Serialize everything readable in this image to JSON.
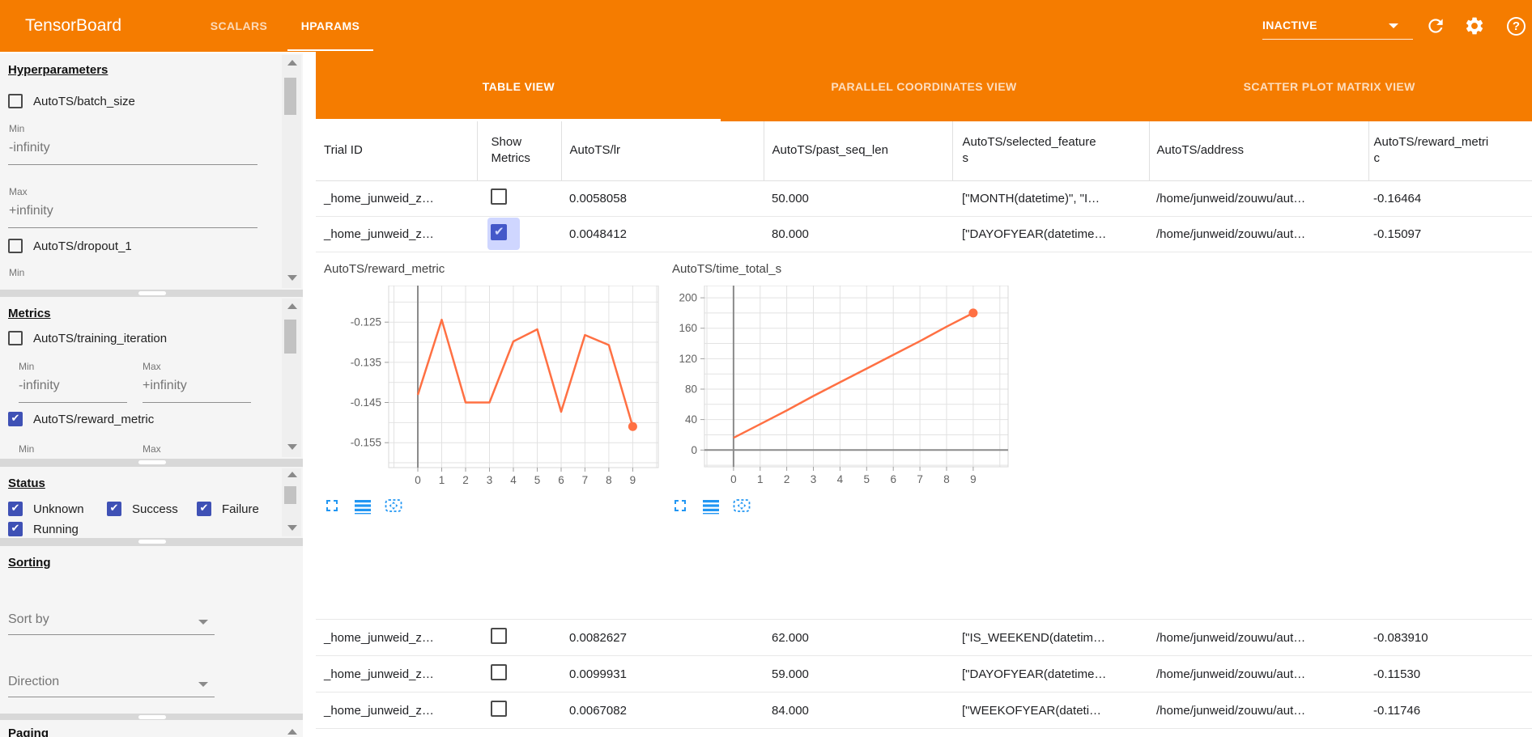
{
  "colors": {
    "toolbar_orange": "#f57c00",
    "accent_line": "#ff7043",
    "checkbox_blue": "#3f51b5",
    "chart_icon_blue": "#2196f3"
  },
  "toolbar": {
    "title": "TensorBoard",
    "tabs": [
      {
        "label": "SCALARS"
      },
      {
        "label": "HPARAMS"
      }
    ],
    "active_tab": "HPARAMS",
    "run_selector_value": "INACTIVE"
  },
  "sidebar": {
    "hyperparameters": {
      "title": "Hyperparameters",
      "items": [
        {
          "label": "AutoTS/batch_size",
          "checked": false,
          "min": {
            "label": "Min",
            "value": "-infinity"
          },
          "max": {
            "label": "Max",
            "value": "+infinity"
          }
        },
        {
          "label": "AutoTS/dropout_1",
          "checked": false,
          "min": {
            "label": "Min"
          }
        }
      ]
    },
    "metrics": {
      "title": "Metrics",
      "items": [
        {
          "label": "AutoTS/training_iteration",
          "checked": false,
          "min": {
            "label": "Min",
            "value": "-infinity"
          },
          "max": {
            "label": "Max",
            "value": "+infinity"
          }
        },
        {
          "label": "AutoTS/reward_metric",
          "checked": true,
          "min": {
            "label": "Min"
          },
          "max": {
            "label": "Max"
          }
        }
      ]
    },
    "status": {
      "title": "Status",
      "options": [
        {
          "label": "Unknown",
          "checked": true
        },
        {
          "label": "Success",
          "checked": true
        },
        {
          "label": "Failure",
          "checked": true
        },
        {
          "label": "Running",
          "checked": true
        }
      ]
    },
    "sorting": {
      "title": "Sorting",
      "sort_by_placeholder": "Sort by",
      "direction_placeholder": "Direction"
    },
    "paging": {
      "title": "Paging"
    }
  },
  "main": {
    "view_tabs": [
      {
        "label": "TABLE VIEW",
        "active": true
      },
      {
        "label": "PARALLEL COORDINATES VIEW",
        "active": false
      },
      {
        "label": "SCATTER PLOT MATRIX VIEW",
        "active": false
      }
    ],
    "table": {
      "columns": [
        "Trial ID",
        "Show Metrics",
        "AutoTS/lr",
        "AutoTS/past_seq_len",
        "AutoTS/selected_features",
        "AutoTS/address",
        "AutoTS/reward_metric"
      ],
      "rows": [
        {
          "trial_id": "_home_junweid_z…",
          "show_metrics": false,
          "lr": "0.0058058",
          "past_seq_len": "50.000",
          "selected_features": "[\"MONTH(datetime)\", \"I…",
          "address": "/home/junweid/zouwu/aut…",
          "reward_metric": "-0.16464"
        },
        {
          "trial_id": "_home_junweid_z…",
          "show_metrics": true,
          "lr": "0.0048412",
          "past_seq_len": "80.000",
          "selected_features": "[\"DAYOFYEAR(datetime…",
          "address": "/home/junweid/zouwu/aut…",
          "reward_metric": "-0.15097"
        },
        {
          "trial_id": "_home_junweid_z…",
          "show_metrics": false,
          "lr": "0.0082627",
          "past_seq_len": "62.000",
          "selected_features": "[\"IS_WEEKEND(datetim…",
          "address": "/home/junweid/zouwu/aut…",
          "reward_metric": "-0.083910"
        },
        {
          "trial_id": "_home_junweid_z…",
          "show_metrics": false,
          "lr": "0.0099931",
          "past_seq_len": "59.000",
          "selected_features": "[\"DAYOFYEAR(datetime…",
          "address": "/home/junweid/zouwu/aut…",
          "reward_metric": "-0.11530"
        },
        {
          "trial_id": "_home_junweid_z…",
          "show_metrics": false,
          "lr": "0.0067082",
          "past_seq_len": "84.000",
          "selected_features": "[\"WEEKOFYEAR(dateti…",
          "address": "/home/junweid/zouwu/aut…",
          "reward_metric": "-0.11746"
        }
      ]
    }
  },
  "chart_data": [
    {
      "type": "line",
      "title": "AutoTS/reward_metric",
      "x": [
        0,
        1,
        2,
        3,
        4,
        5,
        6,
        7,
        8,
        9
      ],
      "y": [
        -0.1431,
        -0.1244,
        -0.145,
        -0.145,
        -0.1298,
        -0.1268,
        -0.1473,
        -0.1282,
        -0.1307,
        -0.15097
      ],
      "xlim": [
        -1.22,
        10.07
      ],
      "ylim": [
        -0.1612,
        -0.1159
      ],
      "xticks": [
        0,
        1,
        2,
        3,
        4,
        5,
        6,
        7,
        8,
        9
      ],
      "yticks": [
        -0.125,
        -0.135,
        -0.145,
        -0.155
      ],
      "ytick_labels": [
        "-0.125",
        "-0.135",
        "-0.145",
        "-0.155"
      ],
      "grid": true,
      "grid_x_step": 1,
      "grid_y_step": 0.005,
      "line_color": "#ff7043",
      "end_marker": true
    },
    {
      "type": "line",
      "title": "AutoTS/time_total_s",
      "x": [
        0,
        1,
        2,
        3,
        4,
        5,
        6,
        7,
        8,
        9
      ],
      "y": [
        16,
        34,
        52,
        71,
        89,
        107,
        125,
        143,
        162,
        180
      ],
      "xlim": [
        -1.09,
        10.31
      ],
      "ylim": [
        -22,
        216
      ],
      "xticks": [
        0,
        1,
        2,
        3,
        4,
        5,
        6,
        7,
        8,
        9
      ],
      "yticks": [
        0,
        40,
        80,
        120,
        160,
        200
      ],
      "ytick_labels": [
        "0",
        "40",
        "80",
        "120",
        "160",
        "200"
      ],
      "grid": true,
      "grid_x_step": 1,
      "grid_y_step": 20,
      "line_color": "#ff7043",
      "end_marker": true
    }
  ]
}
